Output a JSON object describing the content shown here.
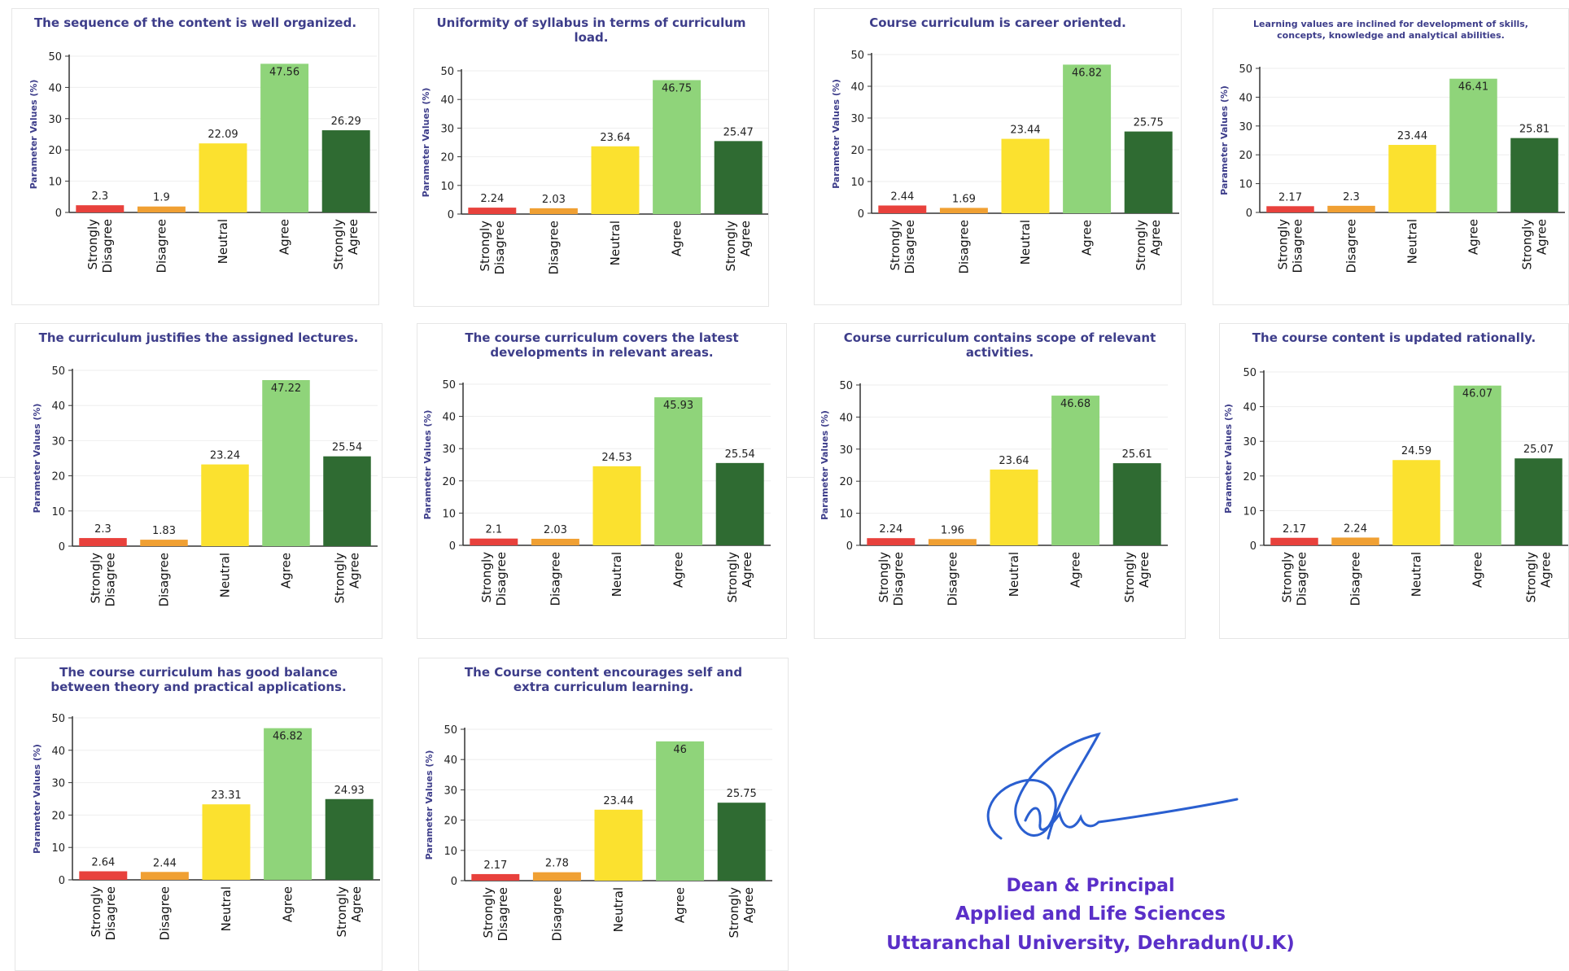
{
  "colors": {
    "strongly_disagree": "#e8413c",
    "disagree": "#f0a033",
    "neutral": "#fbe12f",
    "agree": "#8fd47a",
    "strongly_agree": "#2f6b32",
    "title": "#3d3d8a",
    "stamp": "#5a2fc8",
    "signature": "#2a5fd0"
  },
  "chart_data": [
    {
      "type": "bar",
      "title": [
        "The sequence of the content is well organized."
      ],
      "ylabel": "Parameter Values (%)",
      "ylim": [
        0,
        50
      ],
      "yticks": [
        0,
        10,
        20,
        30,
        40,
        50
      ],
      "categories": [
        [
          "Strongly",
          "Disagree"
        ],
        [
          "Disagree"
        ],
        [
          "Neutral"
        ],
        [
          "Agree"
        ],
        [
          "Strongly",
          "Agree"
        ]
      ],
      "values": [
        2.3,
        1.9,
        22.09,
        47.56,
        26.29
      ],
      "value_labels": [
        "2.3",
        "1.9",
        "22.09",
        "47.56",
        "26.29"
      ]
    },
    {
      "type": "bar",
      "title": [
        "Uniformity of syllabus in terms of curriculum",
        "load."
      ],
      "ylabel": "Parameter Values (%)",
      "ylim": [
        0,
        50
      ],
      "yticks": [
        0,
        10,
        20,
        30,
        40,
        50
      ],
      "categories": [
        [
          "Strongly",
          "Disagree"
        ],
        [
          "Disagree"
        ],
        [
          "Neutral"
        ],
        [
          "Agree"
        ],
        [
          "Strongly",
          "Agree"
        ]
      ],
      "values": [
        2.24,
        2.03,
        23.64,
        46.75,
        25.47
      ],
      "value_labels": [
        "2.24",
        "2.03",
        "23.64",
        "46.75",
        "25.47"
      ]
    },
    {
      "type": "bar",
      "title": [
        "Course curriculum is career oriented."
      ],
      "ylabel": "Parameter Values (%)",
      "ylim": [
        0,
        50
      ],
      "yticks": [
        0,
        10,
        20,
        30,
        40,
        50
      ],
      "categories": [
        [
          "Strongly",
          "Disagree"
        ],
        [
          "Disagree"
        ],
        [
          "Neutral"
        ],
        [
          "Agree"
        ],
        [
          "Strongly",
          "Agree"
        ]
      ],
      "values": [
        2.44,
        1.69,
        23.44,
        46.82,
        25.75
      ],
      "value_labels": [
        "2.44",
        "1.69",
        "23.44",
        "46.82",
        "25.75"
      ]
    },
    {
      "type": "bar",
      "title": [
        "Learning values are inclined for development of skills,",
        "concepts, knowledge and analytical abilities."
      ],
      "ylabel": "Parameter Values (%)",
      "ylim": [
        0,
        50
      ],
      "yticks": [
        0,
        10,
        20,
        30,
        40,
        50
      ],
      "categories": [
        [
          "Strongly",
          "Disagree"
        ],
        [
          "Disagree"
        ],
        [
          "Neutral"
        ],
        [
          "Agree"
        ],
        [
          "Strongly",
          "Agree"
        ]
      ],
      "values": [
        2.17,
        2.3,
        23.44,
        46.41,
        25.81
      ],
      "value_labels": [
        "2.17",
        "2.3",
        "23.44",
        "46.41",
        "25.81"
      ]
    },
    {
      "type": "bar",
      "title": [
        "The curriculum justifies the assigned lectures."
      ],
      "ylabel": "Parameter Values (%)",
      "ylim": [
        0,
        50
      ],
      "yticks": [
        0,
        10,
        20,
        30,
        40,
        50
      ],
      "categories": [
        [
          "Strongly",
          "Disagree"
        ],
        [
          "Disagree"
        ],
        [
          "Neutral"
        ],
        [
          "Agree"
        ],
        [
          "Strongly",
          "Agree"
        ]
      ],
      "values": [
        2.3,
        1.83,
        23.24,
        47.22,
        25.54
      ],
      "value_labels": [
        "2.3",
        "1.83",
        "23.24",
        "47.22",
        "25.54"
      ]
    },
    {
      "type": "bar",
      "title": [
        "The course curriculum covers the latest",
        "developments in relevant areas."
      ],
      "ylabel": "Parameter Values (%)",
      "ylim": [
        0,
        50
      ],
      "yticks": [
        0,
        10,
        20,
        30,
        40,
        50
      ],
      "categories": [
        [
          "Strongly",
          "Disagree"
        ],
        [
          "Disagree"
        ],
        [
          "Neutral"
        ],
        [
          "Agree"
        ],
        [
          "Strongly",
          "Agree"
        ]
      ],
      "values": [
        2.1,
        2.03,
        24.53,
        45.93,
        25.54
      ],
      "value_labels": [
        "2.1",
        "2.03",
        "24.53",
        "45.93",
        "25.54"
      ]
    },
    {
      "type": "bar",
      "title": [
        "Course curriculum contains scope of relevant",
        "activities."
      ],
      "ylabel": "Parameter Values (%)",
      "ylim": [
        0,
        50
      ],
      "yticks": [
        0,
        10,
        20,
        30,
        40,
        50
      ],
      "categories": [
        [
          "Strongly",
          "Disagree"
        ],
        [
          "Disagree"
        ],
        [
          "Neutral"
        ],
        [
          "Agree"
        ],
        [
          "Strongly",
          "Agree"
        ]
      ],
      "values": [
        2.24,
        1.96,
        23.64,
        46.68,
        25.61
      ],
      "value_labels": [
        "2.24",
        "1.96",
        "23.64",
        "46.68",
        "25.61"
      ]
    },
    {
      "type": "bar",
      "title": [
        "The course content is updated rationally."
      ],
      "ylabel": "Parameter Values (%)",
      "ylim": [
        0,
        50
      ],
      "yticks": [
        0,
        10,
        20,
        30,
        40,
        50
      ],
      "categories": [
        [
          "Strongly",
          "Disagree"
        ],
        [
          "Disagree"
        ],
        [
          "Neutral"
        ],
        [
          "Agree"
        ],
        [
          "Strongly",
          "Agree"
        ]
      ],
      "values": [
        2.17,
        2.24,
        24.59,
        46.07,
        25.07
      ],
      "value_labels": [
        "2.17",
        "2.24",
        "24.59",
        "46.07",
        "25.07"
      ]
    },
    {
      "type": "bar",
      "title": [
        "The course curriculum has good balance",
        "between theory and practical applications."
      ],
      "ylabel": "Parameter Values (%)",
      "ylim": [
        0,
        50
      ],
      "yticks": [
        0,
        10,
        20,
        30,
        40,
        50
      ],
      "categories": [
        [
          "Strongly",
          "Disagree"
        ],
        [
          "Disagree"
        ],
        [
          "Neutral"
        ],
        [
          "Agree"
        ],
        [
          "Strongly",
          "Agree"
        ]
      ],
      "values": [
        2.64,
        2.44,
        23.31,
        46.82,
        24.93
      ],
      "value_labels": [
        "2.64",
        "2.44",
        "23.31",
        "46.82",
        "24.93"
      ]
    },
    {
      "type": "bar",
      "title": [
        "The Course content encourages self and",
        "extra curriculum learning."
      ],
      "ylabel": "Parameter Values (%)",
      "ylim": [
        0,
        50
      ],
      "yticks": [
        0,
        10,
        20,
        30,
        40,
        50
      ],
      "categories": [
        [
          "Strongly",
          "Disagree"
        ],
        [
          "Disagree"
        ],
        [
          "Neutral"
        ],
        [
          "Agree"
        ],
        [
          "Strongly",
          "Agree"
        ]
      ],
      "values": [
        2.17,
        2.78,
        23.44,
        46,
        25.75
      ],
      "value_labels": [
        "2.17",
        "2.78",
        "23.44",
        "46",
        "25.75"
      ]
    }
  ],
  "signature": {
    "stamp_lines": [
      "Dean & Principal",
      "Applied and Life Sciences",
      "Uttaranchal University, Dehradun(U.K)"
    ]
  }
}
